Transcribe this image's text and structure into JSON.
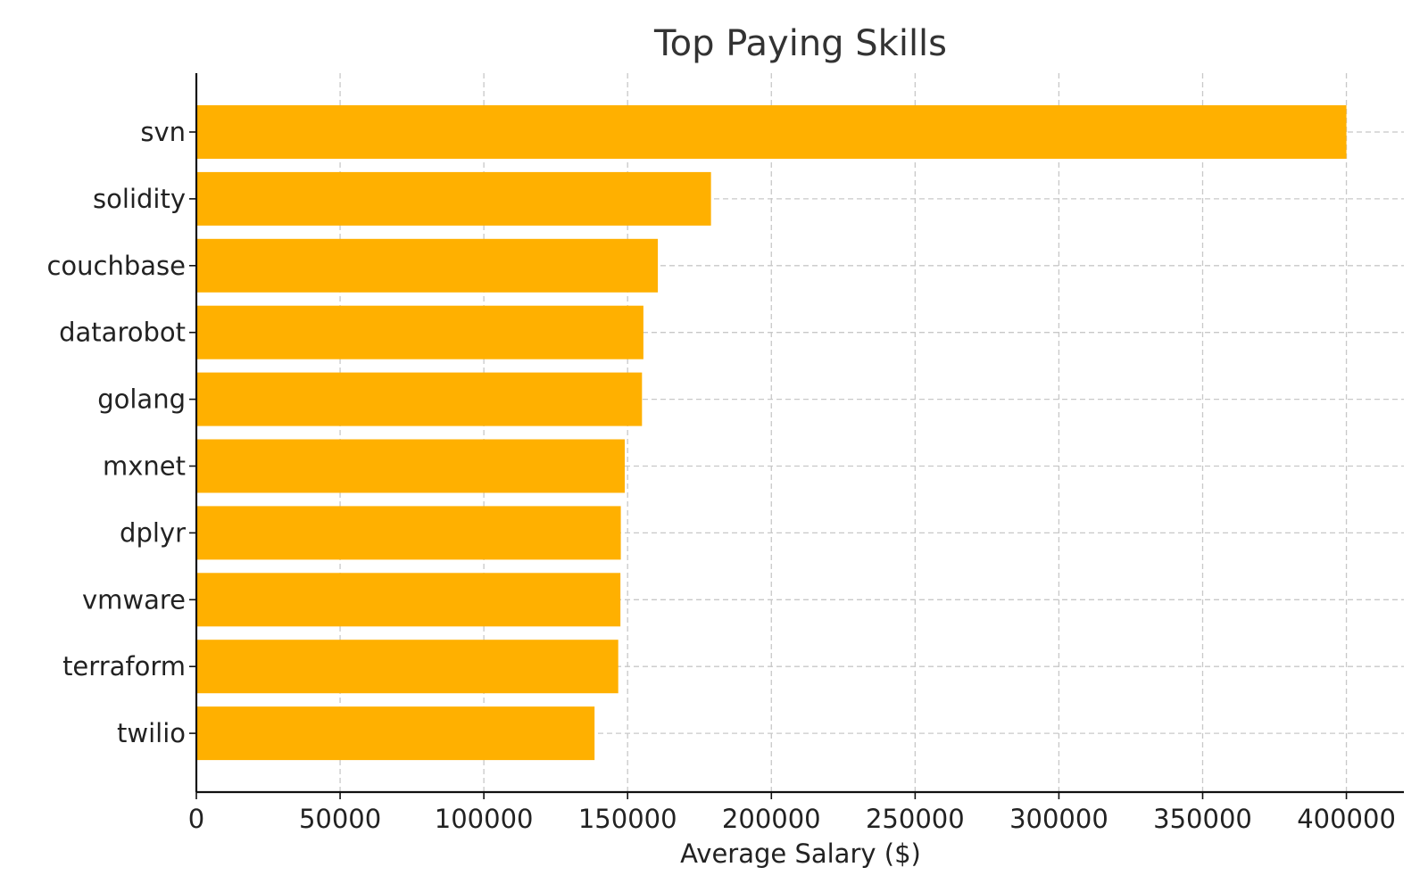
{
  "chart_data": {
    "type": "bar",
    "orientation": "horizontal",
    "title": "Top Paying Skills",
    "xlabel": "Average Salary ($)",
    "ylabel": "",
    "categories": [
      "svn",
      "solidity",
      "couchbase",
      "datarobot",
      "golang",
      "mxnet",
      "dplyr",
      "vmware",
      "terraform",
      "twilio"
    ],
    "values": [
      400000,
      179000,
      160515,
      155486,
      155000,
      149000,
      147633,
      147500,
      146734,
      138500
    ],
    "xlim": [
      0,
      420000
    ],
    "xticks": [
      0,
      50000,
      100000,
      150000,
      200000,
      250000,
      300000,
      350000,
      400000
    ],
    "xtick_labels": [
      "0",
      "50000",
      "100000",
      "150000",
      "200000",
      "250000",
      "300000",
      "350000",
      "400000"
    ],
    "bar_color": "#FFB000",
    "grid": true,
    "grid_style": "dashed"
  }
}
